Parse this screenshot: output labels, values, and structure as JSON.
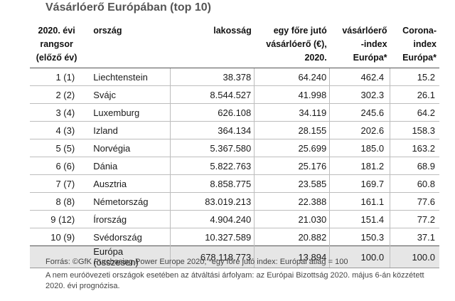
{
  "title": "Vásárlóerő Európában (top 10)",
  "headers": {
    "rank": [
      "2020. évi",
      "rangsor",
      "(előző év)"
    ],
    "country": "ország",
    "population": "lakosság",
    "per_capita": [
      "egy főre jutó",
      "vásárlóerő (€),",
      "2020."
    ],
    "index": [
      "vásárlóerő",
      "-index",
      "Európa*"
    ],
    "corona": [
      "Corona-",
      "index",
      "Európa*"
    ]
  },
  "rows": [
    {
      "rank": "1 (1)",
      "country": "Liechtenstein",
      "population": "38.378",
      "per_capita": "64.240",
      "index": "462.4",
      "corona": "15.2"
    },
    {
      "rank": "2 (2)",
      "country": "Svájc",
      "population": "8.544.527",
      "per_capita": "41.998",
      "index": "302.3",
      "corona": "26.1"
    },
    {
      "rank": "3 (4)",
      "country": "Luxemburg",
      "population": "626.108",
      "per_capita": "34.119",
      "index": "245.6",
      "corona": "64.2"
    },
    {
      "rank": "4 (3)",
      "country": "Izland",
      "population": "364.134",
      "per_capita": "28.155",
      "index": "202.6",
      "corona": "158.3"
    },
    {
      "rank": "5 (5)",
      "country": "Norvégia",
      "population": "5.367.580",
      "per_capita": "25.699",
      "index": "185.0",
      "corona": "163.2"
    },
    {
      "rank": "6 (6)",
      "country": "Dánia",
      "population": "5.822.763",
      "per_capita": "25.176",
      "index": "181.2",
      "corona": "68.9"
    },
    {
      "rank": "7 (7)",
      "country": "Ausztria",
      "population": "8.858.775",
      "per_capita": "23.585",
      "index": "169.7",
      "corona": "60.8"
    },
    {
      "rank": "8 (8)",
      "country": "Németország",
      "population": "83.019.213",
      "per_capita": "22.388",
      "index": "161.1",
      "corona": "77.6"
    },
    {
      "rank": "9 (12)",
      "country": "Írország",
      "population": "4.904.240",
      "per_capita": "21.030",
      "index": "151.4",
      "corona": "77.2"
    },
    {
      "rank": "10 (9)",
      "country": "Svédország",
      "population": "10.327.589",
      "per_capita": "20.882",
      "index": "150.3",
      "corona": "37.1"
    }
  ],
  "total": {
    "rank": "",
    "country": "Európa (összesen)",
    "population": "678.118.773",
    "per_capita": "13.894",
    "index": "100.0",
    "corona": "100.0"
  },
  "notes": {
    "source": "Forrás: ©GfK Purchasing Power Europe 2020; *egy főre jutó index: Európai átlag = 100",
    "exchange": "A nem euróövezeti országok esetében az átváltási árfolyam: az Európai Bizottság 2020. május 6-án közzétett 2020. évi prognózisa."
  }
}
